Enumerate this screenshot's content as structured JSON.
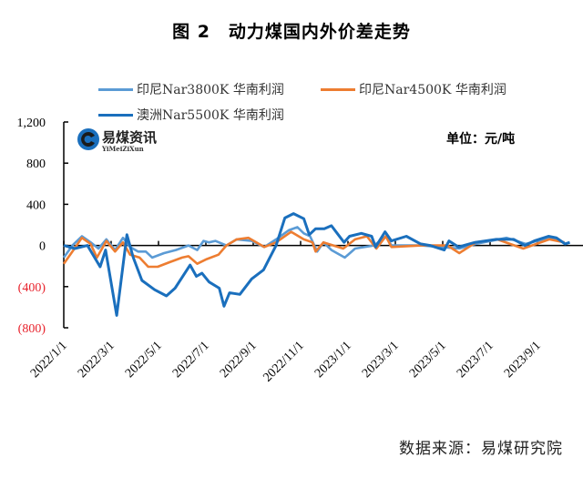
{
  "title": "图 2　动力煤国内外价差走势",
  "unit": "单位：元/吨",
  "source": "数据来源：易煤研究院",
  "logo": {
    "cn": "易煤资讯",
    "en": "YiMeiZiXun"
  },
  "chart_data": {
    "type": "line",
    "title": "图 2　动力煤国内外价差走势",
    "ylabel": "单位：元/吨",
    "ylim": [
      -800,
      1200
    ],
    "yticks": [
      1200,
      800,
      400,
      0,
      -400,
      -800
    ],
    "ytick_labels": [
      "1,200",
      "800",
      "400",
      "0",
      "(400)",
      "(800)"
    ],
    "negative_label_color": "#e8212b",
    "xlim": [
      "2022-01-01",
      "2023-11-20"
    ],
    "xtick_labels": [
      "2022/1/1",
      "2022/3/1",
      "2022/5/1",
      "2022/7/1",
      "2022/9/1",
      "2022/11/1",
      "2023/1/1",
      "2023/3/1",
      "2023/5/1",
      "2023/7/1",
      "2023/9/1"
    ],
    "xticks": [
      "2022-01-01",
      "2022-03-01",
      "2022-05-01",
      "2022-07-01",
      "2022-09-01",
      "2022-11-01",
      "2023-01-01",
      "2023-03-01",
      "2023-05-01",
      "2023-07-01",
      "2023-09-01"
    ],
    "grid": false,
    "legend_position": "top",
    "series": [
      {
        "name": "印尼Nar3800K 华南利润",
        "color": "#5b9bd5",
        "points": [
          [
            "2022-01-01",
            -118
          ],
          [
            "2022-01-12",
            0
          ],
          [
            "2022-01-24",
            89
          ],
          [
            "2022-02-05",
            30
          ],
          [
            "2022-02-15",
            -30
          ],
          [
            "2022-02-25",
            59
          ],
          [
            "2022-03-06",
            -44
          ],
          [
            "2022-03-16",
            74
          ],
          [
            "2022-03-25",
            -15
          ],
          [
            "2022-04-05",
            -59
          ],
          [
            "2022-04-15",
            -59
          ],
          [
            "2022-04-23",
            -118
          ],
          [
            "2022-05-08",
            -74
          ],
          [
            "2022-05-23",
            -44
          ],
          [
            "2022-06-09",
            0
          ],
          [
            "2022-06-20",
            -44
          ],
          [
            "2022-06-28",
            44
          ],
          [
            "2022-07-05",
            30
          ],
          [
            "2022-07-13",
            44
          ],
          [
            "2022-07-27",
            0
          ],
          [
            "2022-08-10",
            59
          ],
          [
            "2022-08-29",
            44
          ],
          [
            "2022-09-15",
            -15
          ],
          [
            "2022-09-30",
            59
          ],
          [
            "2022-10-16",
            148
          ],
          [
            "2022-10-27",
            178
          ],
          [
            "2022-11-05",
            118
          ],
          [
            "2022-11-13",
            89
          ],
          [
            "2022-11-22",
            -59
          ],
          [
            "2022-11-30",
            30
          ],
          [
            "2022-12-10",
            -44
          ],
          [
            "2022-12-27",
            -118
          ],
          [
            "2023-01-10",
            -30
          ],
          [
            "2023-02-04",
            0
          ],
          [
            "2023-02-19",
            89
          ],
          [
            "2023-02-26",
            0
          ],
          [
            "2023-04-04",
            0
          ],
          [
            "2023-05-22",
            -30
          ],
          [
            "2023-06-13",
            15
          ],
          [
            "2023-07-22",
            74
          ],
          [
            "2023-08-16",
            15
          ],
          [
            "2023-09-16",
            74
          ],
          [
            "2023-10-05",
            30
          ]
        ]
      },
      {
        "name": "印尼Nar4500K 华南利润",
        "color": "#ed7d31",
        "points": [
          [
            "2022-01-01",
            -178
          ],
          [
            "2022-01-12",
            -59
          ],
          [
            "2022-01-24",
            74
          ],
          [
            "2022-02-05",
            15
          ],
          [
            "2022-02-13",
            -118
          ],
          [
            "2022-02-25",
            44
          ],
          [
            "2022-03-06",
            -59
          ],
          [
            "2022-03-16",
            30
          ],
          [
            "2022-03-25",
            -89
          ],
          [
            "2022-04-07",
            -118
          ],
          [
            "2022-04-18",
            -207
          ],
          [
            "2022-04-30",
            -207
          ],
          [
            "2022-05-15",
            -163
          ],
          [
            "2022-06-01",
            -118
          ],
          [
            "2022-06-09",
            -104
          ],
          [
            "2022-06-20",
            -178
          ],
          [
            "2022-07-02",
            -133
          ],
          [
            "2022-07-17",
            -89
          ],
          [
            "2022-07-27",
            0
          ],
          [
            "2022-08-10",
            59
          ],
          [
            "2022-08-25",
            74
          ],
          [
            "2022-09-15",
            -15
          ],
          [
            "2022-09-30",
            30
          ],
          [
            "2022-10-19",
            133
          ],
          [
            "2022-11-05",
            59
          ],
          [
            "2022-11-16",
            30
          ],
          [
            "2022-11-20",
            -59
          ],
          [
            "2022-11-30",
            30
          ],
          [
            "2022-12-25",
            -30
          ],
          [
            "2023-01-10",
            59
          ],
          [
            "2023-01-25",
            89
          ],
          [
            "2023-02-07",
            -30
          ],
          [
            "2023-02-19",
            89
          ],
          [
            "2023-02-26",
            -15
          ],
          [
            "2023-04-04",
            0
          ],
          [
            "2023-05-07",
            0
          ],
          [
            "2023-05-22",
            -74
          ],
          [
            "2023-06-13",
            30
          ],
          [
            "2023-07-10",
            59
          ],
          [
            "2023-08-13",
            -30
          ],
          [
            "2023-09-16",
            59
          ],
          [
            "2023-10-05",
            30
          ]
        ]
      },
      {
        "name": "澳洲Nar5500K 华南利润",
        "color": "#1a6fbd",
        "points": [
          [
            "2022-01-01",
            0
          ],
          [
            "2022-01-15",
            -30
          ],
          [
            "2022-02-01",
            0
          ],
          [
            "2022-02-17",
            -207
          ],
          [
            "2022-02-24",
            -44
          ],
          [
            "2022-03-08",
            -680
          ],
          [
            "2022-03-21",
            104
          ],
          [
            "2022-03-29",
            -118
          ],
          [
            "2022-04-10",
            -340
          ],
          [
            "2022-04-26",
            -430
          ],
          [
            "2022-05-11",
            -490
          ],
          [
            "2022-05-22",
            -415
          ],
          [
            "2022-06-11",
            -190
          ],
          [
            "2022-06-19",
            -300
          ],
          [
            "2022-06-26",
            -270
          ],
          [
            "2022-07-05",
            -355
          ],
          [
            "2022-07-18",
            -415
          ],
          [
            "2022-07-24",
            -590
          ],
          [
            "2022-07-31",
            -460
          ],
          [
            "2022-08-14",
            -475
          ],
          [
            "2022-08-29",
            -325
          ],
          [
            "2022-09-14",
            -237
          ],
          [
            "2022-09-22",
            -118
          ],
          [
            "2022-09-30",
            0
          ],
          [
            "2022-10-11",
            267
          ],
          [
            "2022-10-22",
            310
          ],
          [
            "2022-11-05",
            260
          ],
          [
            "2022-11-12",
            104
          ],
          [
            "2022-11-20",
            163
          ],
          [
            "2022-12-01",
            163
          ],
          [
            "2022-12-10",
            192
          ],
          [
            "2022-12-26",
            30
          ],
          [
            "2023-01-03",
            89
          ],
          [
            "2023-01-18",
            118
          ],
          [
            "2023-02-01",
            89
          ],
          [
            "2023-02-06",
            -15
          ],
          [
            "2023-02-18",
            133
          ],
          [
            "2023-02-26",
            44
          ],
          [
            "2023-03-15",
            89
          ],
          [
            "2023-04-03",
            15
          ],
          [
            "2023-04-15",
            0
          ],
          [
            "2023-05-03",
            -44
          ],
          [
            "2023-05-09",
            44
          ],
          [
            "2023-05-21",
            -15
          ],
          [
            "2023-06-12",
            30
          ],
          [
            "2023-07-09",
            59
          ],
          [
            "2023-08-01",
            59
          ],
          [
            "2023-08-15",
            0
          ],
          [
            "2023-08-27",
            44
          ],
          [
            "2023-09-15",
            89
          ],
          [
            "2023-09-25",
            74
          ],
          [
            "2023-10-06",
            15
          ],
          [
            "2023-10-12",
            30
          ]
        ]
      }
    ]
  }
}
